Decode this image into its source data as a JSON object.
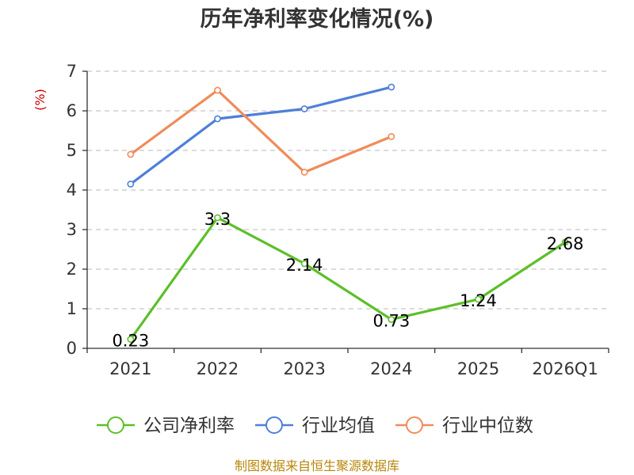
{
  "chart_data": {
    "type": "line",
    "title": "历年净利率变化情况(%)",
    "ylabel": "(%)",
    "categories": [
      "2021",
      "2022",
      "2023",
      "2024",
      "2025",
      "2026Q1"
    ],
    "ylim": [
      0,
      7
    ],
    "yticks": [
      0,
      1,
      2,
      3,
      4,
      5,
      6,
      7
    ],
    "grid": true,
    "legend_position": "bottom",
    "series": [
      {
        "name": "公司净利率",
        "color": "#5cbf2a",
        "values": [
          0.23,
          3.3,
          2.14,
          0.73,
          1.24,
          2.68
        ],
        "labels": [
          "0.23",
          "3.3",
          "2.14",
          "0.73",
          "1.24",
          "2.68"
        ]
      },
      {
        "name": "行业均值",
        "color": "#4e7fd8",
        "values": [
          4.15,
          5.8,
          6.05,
          6.6,
          null,
          null
        ]
      },
      {
        "name": "行业中位数",
        "color": "#f08c5a",
        "values": [
          4.9,
          6.52,
          4.45,
          5.35,
          null,
          null
        ]
      }
    ]
  },
  "source": "制图数据来自恒生聚源数据库"
}
